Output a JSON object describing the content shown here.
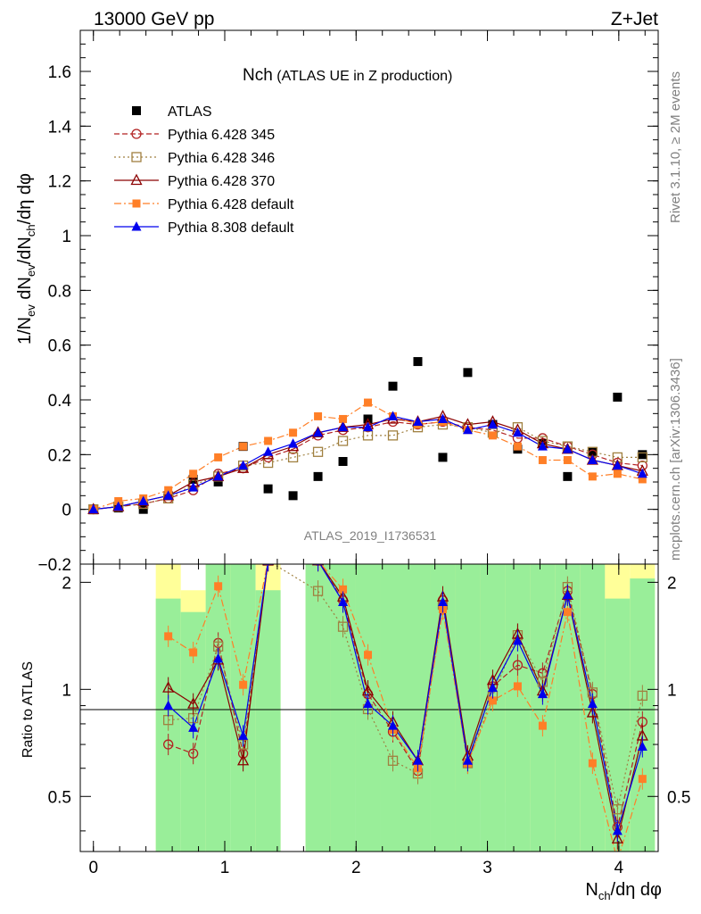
{
  "header": {
    "left": "13000 GeV pp",
    "right": "Z+Jet"
  },
  "side_labels": {
    "rivet": "Rivet 3.1.10, ≥ 2M events",
    "mcplots": "mcplots.cern.ch [arXiv:1306.3436]"
  },
  "watermark": "ATLAS_2019_I1736531",
  "title": {
    "main": "Nch",
    "sub": " (ATLAS UE in Z production)"
  },
  "legend": [
    "ATLAS",
    "Pythia 6.428 345",
    "Pythia 6.428 346",
    "Pythia 6.428 370",
    "Pythia 6.428 default",
    "Pythia 8.308 default"
  ],
  "colors": {
    "ATLAS": "#000000",
    "p345": "#b22222",
    "p346": "#a08040",
    "p370": "#8b0000",
    "pdefault": "#ff7f27",
    "p8": "#0000ee",
    "band_inner": "#99ee99",
    "band_outer": "#ffff99"
  },
  "chart_data": [
    {
      "type": "scatter",
      "panel": "main",
      "ylabel": "1/N_ev dN_ev/dN_ch/dη dφ",
      "xlim": [
        -0.1,
        4.3
      ],
      "ylim": [
        -0.2,
        1.75
      ],
      "yticks": [
        "−0.2",
        "0",
        "0.2",
        "0.4",
        "0.6",
        "0.8",
        "1",
        "1.2",
        "1.4",
        "1.6"
      ],
      "x": [
        0.0,
        0.19,
        0.38,
        0.57,
        0.76,
        0.95,
        1.14,
        1.33,
        1.52,
        1.71,
        1.9,
        2.09,
        2.28,
        2.47,
        2.66,
        2.85,
        3.04,
        3.23,
        3.42,
        3.61,
        3.8,
        3.99,
        4.18
      ],
      "series": [
        {
          "name": "ATLAS",
          "key": "ATLAS",
          "values": [
            0.0,
            0.005,
            0.0,
            0.05,
            0.11,
            0.1,
            0.23,
            0.075,
            0.05,
            0.12,
            0.175,
            0.33,
            0.45,
            0.54,
            0.19,
            0.5,
            0.31,
            0.22,
            0.24,
            0.12,
            0.21,
            0.41,
            0.2
          ]
        },
        {
          "name": "Pythia 6.428 345",
          "key": "p345",
          "values": [
            0.0,
            0.01,
            0.02,
            0.04,
            0.07,
            0.13,
            0.15,
            0.19,
            0.22,
            0.27,
            0.29,
            0.3,
            0.32,
            0.31,
            0.32,
            0.3,
            0.29,
            0.26,
            0.26,
            0.23,
            0.2,
            0.17,
            0.16
          ]
        },
        {
          "name": "Pythia 6.428 346",
          "key": "p346",
          "values": [
            0.0,
            0.01,
            0.02,
            0.04,
            0.09,
            0.12,
            0.16,
            0.17,
            0.19,
            0.21,
            0.25,
            0.27,
            0.27,
            0.3,
            0.31,
            0.3,
            0.28,
            0.3,
            0.25,
            0.23,
            0.21,
            0.19,
            0.19
          ]
        },
        {
          "name": "Pythia 6.428 370",
          "key": "p370",
          "values": [
            0.0,
            0.01,
            0.03,
            0.05,
            0.1,
            0.12,
            0.15,
            0.2,
            0.23,
            0.28,
            0.3,
            0.31,
            0.33,
            0.32,
            0.34,
            0.31,
            0.32,
            0.29,
            0.24,
            0.22,
            0.18,
            0.16,
            0.14
          ]
        },
        {
          "name": "Pythia 6.428 default",
          "key": "pdefault",
          "values": [
            0.0,
            0.03,
            0.04,
            0.07,
            0.13,
            0.19,
            0.23,
            0.25,
            0.28,
            0.34,
            0.33,
            0.39,
            0.34,
            0.31,
            0.32,
            0.29,
            0.27,
            0.23,
            0.18,
            0.18,
            0.12,
            0.13,
            0.11
          ]
        },
        {
          "name": "Pythia 8.308 default",
          "key": "p8",
          "values": [
            0.0,
            0.01,
            0.03,
            0.05,
            0.08,
            0.12,
            0.16,
            0.21,
            0.24,
            0.28,
            0.3,
            0.3,
            0.34,
            0.32,
            0.33,
            0.29,
            0.31,
            0.28,
            0.23,
            0.22,
            0.18,
            0.16,
            0.13
          ]
        }
      ]
    },
    {
      "type": "scatter",
      "panel": "ratio",
      "xlabel": "N_ch/dη dφ",
      "ylabel": "Ratio to ATLAS",
      "xlim": [
        -0.1,
        4.3
      ],
      "ylim": [
        0.35,
        2.25
      ],
      "yticks": [
        "0.5",
        "1",
        "2"
      ],
      "xticks": [
        "0",
        "1",
        "2",
        "3",
        "4"
      ],
      "x": [
        0.57,
        0.76,
        0.95,
        1.14,
        1.33,
        1.71,
        1.9,
        2.09,
        2.28,
        2.47,
        2.66,
        2.85,
        3.04,
        3.23,
        3.42,
        3.61,
        3.8,
        3.99,
        4.18
      ],
      "bands": {
        "inner_lo": [
          0.35,
          0.35,
          0.35,
          0.35,
          0.35,
          0.35,
          0.35,
          0.35,
          0.35,
          0.35,
          0.35,
          0.35,
          0.35,
          0.35,
          0.35,
          0.35,
          0.35,
          0.35,
          0.35
        ],
        "inner_hi": [
          1.8,
          1.65,
          2.25,
          2.25,
          1.9,
          2.25,
          2.25,
          2.25,
          2.25,
          2.25,
          2.25,
          2.25,
          2.25,
          2.25,
          2.25,
          2.25,
          2.25,
          1.8,
          2.05
        ],
        "outer_lo": [
          0.35,
          0.57,
          0.35,
          0.63,
          0.35,
          0.35,
          0.35,
          0.56,
          0.48,
          0.58,
          0.35,
          0.52,
          0.52,
          0.48,
          0.35,
          0.35,
          0.35,
          0.35,
          0.35
        ],
        "outer_hi": [
          2.25,
          1.9,
          2.25,
          2.25,
          2.25,
          2.25,
          2.25,
          2.25,
          2.25,
          2.25,
          2.25,
          2.25,
          2.25,
          2.25,
          2.25,
          2.25,
          2.25,
          2.25,
          2.25
        ]
      },
      "series": [
        {
          "name": "Pythia 6.428 345",
          "key": "p345",
          "values": [
            0.7,
            0.66,
            1.35,
            0.66,
            2.3,
            2.3,
            1.78,
            0.97,
            0.76,
            0.59,
            1.78,
            0.62,
            1.02,
            1.17,
            1.11,
            1.89,
            0.97,
            0.41,
            0.81
          ]
        },
        {
          "name": "Pythia 6.428 346",
          "key": "p346",
          "values": [
            0.82,
            0.83,
            1.32,
            0.7,
            2.3,
            1.89,
            1.5,
            0.88,
            0.63,
            0.58,
            1.73,
            0.62,
            0.96,
            1.42,
            1.05,
            1.94,
            0.98,
            0.46,
            0.96
          ]
        },
        {
          "name": "Pythia 6.428 370",
          "key": "p370",
          "values": [
            1.01,
            0.91,
            1.21,
            0.63,
            2.3,
            2.3,
            1.82,
            0.99,
            0.81,
            0.63,
            1.82,
            0.65,
            1.06,
            1.43,
            0.99,
            1.84,
            0.86,
            0.38,
            0.74
          ]
        },
        {
          "name": "Pythia 6.428 default",
          "key": "pdefault",
          "values": [
            1.41,
            1.27,
            1.95,
            1.03,
            2.3,
            2.3,
            1.91,
            1.25,
            0.77,
            0.6,
            1.68,
            0.62,
            0.93,
            1.02,
            0.79,
            1.65,
            0.62,
            0.33,
            0.56
          ]
        },
        {
          "name": "Pythia 8.308 default",
          "key": "p8",
          "values": [
            0.9,
            0.78,
            1.22,
            0.74,
            2.3,
            2.3,
            1.76,
            0.91,
            0.79,
            0.63,
            1.76,
            0.63,
            1.01,
            1.37,
            0.97,
            1.84,
            0.91,
            0.4,
            0.69
          ]
        }
      ]
    }
  ]
}
